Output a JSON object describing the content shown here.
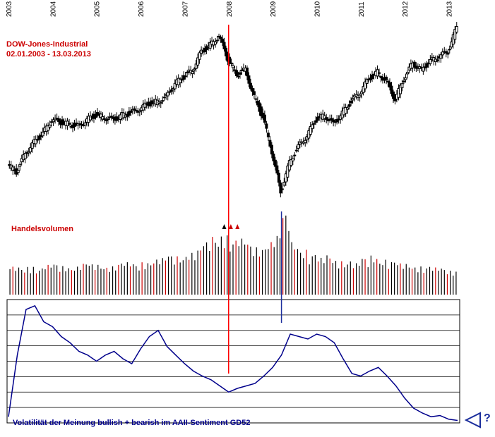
{
  "colors": {
    "accent": "#cc0000",
    "navy": "#00008b",
    "candle": "#000000",
    "volume_black": "#000000",
    "volume_red": "#cc0000",
    "marker_red": "#ff0000",
    "marker_blue": "#1a2d9c"
  },
  "chart_data": [
    {
      "type": "candlestick",
      "title": "DOW-Jones-Industrial",
      "subtitle": "02.01.2003 - 13.03.2013",
      "x_tick_labels": [
        "2003",
        "2004",
        "2005",
        "2006",
        "2007",
        "2008",
        "2009",
        "2010",
        "2011",
        "2012",
        "2013"
      ],
      "x_tick_dates": [
        2003.0,
        2004.0,
        2005.0,
        2006.0,
        2007.0,
        2008.0,
        2009.0,
        2010.0,
        2011.0,
        2012.0,
        2013.0
      ],
      "x": [
        2003.0,
        2003.2,
        2003.4,
        2003.6,
        2003.8,
        2004.0,
        2004.2,
        2004.4,
        2004.6,
        2004.8,
        2005.0,
        2005.2,
        2005.4,
        2005.6,
        2005.8,
        2006.0,
        2006.2,
        2006.4,
        2006.6,
        2006.8,
        2007.0,
        2007.2,
        2007.4,
        2007.6,
        2007.8,
        2008.0,
        2008.2,
        2008.4,
        2008.6,
        2008.8,
        2009.0,
        2009.2,
        2009.4,
        2009.6,
        2009.8,
        2010.0,
        2010.2,
        2010.4,
        2010.6,
        2010.8,
        2011.0,
        2011.2,
        2011.4,
        2011.6,
        2011.8,
        2012.0,
        2012.2,
        2012.4,
        2012.6,
        2012.8,
        2013.0,
        2013.2
      ],
      "close": [
        8400,
        8100,
        8900,
        9400,
        9800,
        10400,
        10300,
        10200,
        10100,
        10400,
        10600,
        10500,
        10400,
        10600,
        10700,
        10900,
        11100,
        11200,
        11400,
        12000,
        12300,
        12600,
        13400,
        13700,
        14100,
        13100,
        12400,
        12600,
        11400,
        10500,
        9000,
        7200,
        8500,
        9200,
        9700,
        10400,
        10600,
        10200,
        10700,
        11200,
        11600,
        12200,
        12500,
        12100,
        11300,
        12200,
        12900,
        12600,
        13000,
        13200,
        13400,
        14500
      ],
      "series": [
        {
          "name": "Handelsvolumen",
          "type": "volume",
          "values": [
            30,
            32,
            31,
            33,
            30,
            34,
            35,
            33,
            32,
            36,
            35,
            34,
            33,
            36,
            37,
            35,
            38,
            40,
            42,
            45,
            44,
            48,
            52,
            60,
            66,
            70,
            62,
            64,
            58,
            55,
            60,
            68,
            92,
            60,
            52,
            46,
            42,
            45,
            40,
            38,
            36,
            42,
            45,
            40,
            38,
            36,
            35,
            33,
            32,
            31,
            30,
            28
          ]
        }
      ]
    },
    {
      "type": "line",
      "title": "Volatilität der Meinung bullish + bearish im AAII-Sentiment GD52",
      "ylim": [
        0,
        1
      ],
      "x": [
        2003.0,
        2003.2,
        2003.4,
        2003.6,
        2003.8,
        2004.0,
        2004.2,
        2004.4,
        2004.6,
        2004.8,
        2005.0,
        2005.2,
        2005.4,
        2005.6,
        2005.8,
        2006.0,
        2006.2,
        2006.4,
        2006.6,
        2006.8,
        2007.0,
        2007.2,
        2007.4,
        2007.6,
        2007.8,
        2008.0,
        2008.2,
        2008.4,
        2008.6,
        2008.8,
        2009.0,
        2009.2,
        2009.4,
        2009.6,
        2009.8,
        2010.0,
        2010.2,
        2010.4,
        2010.6,
        2010.8,
        2011.0,
        2011.2,
        2011.4,
        2011.6,
        2011.8,
        2012.0,
        2012.2,
        2012.4,
        2012.6,
        2012.8,
        2013.0,
        2013.2
      ],
      "values": [
        0.05,
        0.55,
        0.92,
        0.95,
        0.82,
        0.78,
        0.7,
        0.65,
        0.58,
        0.55,
        0.5,
        0.55,
        0.58,
        0.52,
        0.48,
        0.6,
        0.7,
        0.75,
        0.62,
        0.55,
        0.48,
        0.42,
        0.38,
        0.35,
        0.3,
        0.25,
        0.28,
        0.3,
        0.32,
        0.38,
        0.45,
        0.55,
        0.72,
        0.7,
        0.68,
        0.72,
        0.7,
        0.65,
        0.52,
        0.4,
        0.38,
        0.42,
        0.45,
        0.38,
        0.3,
        0.2,
        0.12,
        0.08,
        0.05,
        0.06,
        0.03,
        0.02
      ]
    }
  ],
  "labels": {
    "index_name": "DOW-Jones-Industrial",
    "date_range": "02.01.2003 - 13.03.2013",
    "volume_label": "Handelsvolumen",
    "footer": "Volatilität der Meinung bullish + bearish im AAII-Sentiment GD52",
    "help_label": "?"
  }
}
